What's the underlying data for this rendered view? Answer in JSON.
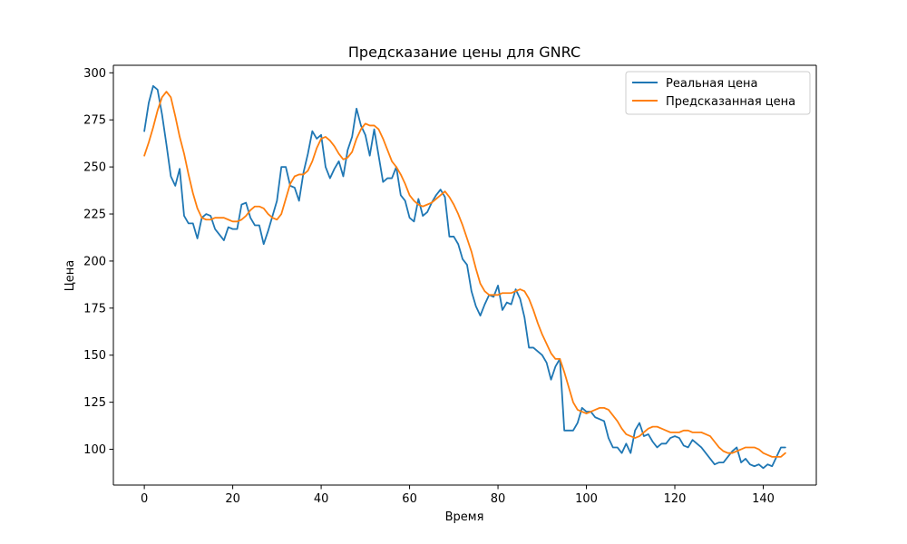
{
  "chart_data": {
    "type": "line",
    "title": "Предсказание цены для GNRC",
    "xlabel": "Время",
    "ylabel": "Цена",
    "xlim": [
      -7,
      152
    ],
    "ylim": [
      81,
      304
    ],
    "xticks": [
      0,
      20,
      40,
      60,
      80,
      100,
      120,
      140
    ],
    "yticks": [
      100,
      125,
      150,
      175,
      200,
      225,
      250,
      275,
      300
    ],
    "grid": false,
    "legend_position": "top-right",
    "series": [
      {
        "name": "Реальная цена",
        "color": "#1f77b4",
        "values": [
          269,
          284,
          293,
          291,
          278,
          262,
          245,
          240,
          249,
          224,
          220,
          220,
          212,
          223,
          225,
          224,
          217,
          214,
          211,
          218,
          217,
          217,
          230,
          231,
          223,
          219,
          219,
          209,
          216,
          224,
          232,
          250,
          250,
          240,
          239,
          232,
          247,
          257,
          269,
          265,
          267,
          250,
          244,
          249,
          253,
          245,
          259,
          266,
          281,
          272,
          267,
          256,
          270,
          256,
          242,
          244,
          244,
          250,
          235,
          232,
          223,
          221,
          233,
          224,
          226,
          231,
          235,
          238,
          234,
          213,
          213,
          209,
          201,
          198,
          184,
          176,
          171,
          177,
          182,
          181,
          187,
          174,
          178,
          177,
          185,
          180,
          170,
          154,
          154,
          152,
          150,
          146,
          137,
          144,
          148,
          110,
          110,
          110,
          114,
          122,
          120,
          120,
          117,
          116,
          115,
          106,
          101,
          101,
          98,
          103,
          98,
          110,
          114,
          107,
          108,
          104,
          101,
          103,
          103,
          106,
          107,
          106,
          102,
          101,
          105,
          103,
          101,
          98,
          95,
          92,
          93,
          93,
          96,
          99,
          101,
          93,
          95,
          92,
          91,
          92,
          90,
          92,
          91,
          96,
          101,
          101
        ]
      },
      {
        "name": "Предсказанная цена",
        "color": "#ff7f0e",
        "values": [
          256,
          263,
          271,
          280,
          287,
          290,
          287,
          277,
          266,
          257,
          246,
          236,
          228,
          223,
          222,
          222,
          223,
          223,
          223,
          222,
          221,
          221,
          222,
          224,
          227,
          229,
          229,
          228,
          225,
          223,
          222,
          225,
          233,
          241,
          245,
          246,
          246,
          248,
          253,
          260,
          265,
          266,
          264,
          261,
          257,
          254,
          255,
          258,
          265,
          270,
          273,
          272,
          272,
          270,
          265,
          259,
          253,
          250,
          246,
          241,
          235,
          232,
          230,
          229,
          230,
          231,
          233,
          235,
          237,
          234,
          230,
          225,
          219,
          212,
          205,
          196,
          188,
          184,
          182,
          182,
          182,
          183,
          183,
          183,
          184,
          185,
          184,
          180,
          174,
          167,
          161,
          156,
          151,
          148,
          148,
          141,
          133,
          125,
          121,
          120,
          119,
          120,
          121,
          122,
          122,
          121,
          118,
          115,
          111,
          108,
          107,
          106,
          107,
          109,
          111,
          112,
          112,
          111,
          110,
          109,
          109,
          109,
          110,
          110,
          109,
          109,
          109,
          108,
          107,
          104,
          101,
          99,
          98,
          98,
          99,
          100,
          101,
          101,
          101,
          100,
          98,
          97,
          96,
          96,
          96,
          98
        ]
      }
    ]
  }
}
